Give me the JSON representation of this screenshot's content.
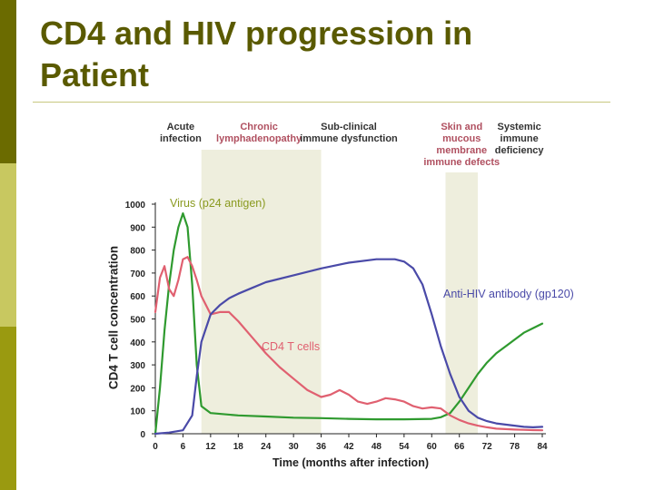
{
  "slide": {
    "title_line1": "CD4 and HIV progression in",
    "title_line2": "Patient"
  },
  "colors": {
    "title": "#5a5a00",
    "virus": "#2f9a2f",
    "cd4": "#e06070",
    "antibody": "#4a4aa8",
    "stage_band": "#eeeedd",
    "virus_label": "#8a9a20"
  },
  "chart_data": {
    "type": "line",
    "title": "",
    "xlabel": "Time (months after infection)",
    "ylabel": "CD4 T cell concentration",
    "xlim": [
      0,
      84
    ],
    "ylim": [
      0,
      1000
    ],
    "x_ticks": [
      0,
      6,
      12,
      18,
      24,
      30,
      36,
      42,
      48,
      54,
      60,
      66,
      72,
      78,
      84
    ],
    "y_ticks": [
      0,
      100,
      200,
      300,
      400,
      500,
      600,
      700,
      800,
      900,
      1000
    ],
    "grid": false,
    "stage_labels": [
      {
        "lines": [
          "Acute",
          "infection"
        ],
        "x": 5.5,
        "color": "#333333"
      },
      {
        "lines": [
          "Chronic",
          "lymphadenopathy"
        ],
        "x": 22.5,
        "color": "#b05060"
      },
      {
        "lines": [
          "Sub-clinical",
          "immune dysfunction"
        ],
        "x": 42,
        "color": "#333333"
      },
      {
        "lines": [
          "Skin and",
          "mucous",
          "membrane",
          "immune defects"
        ],
        "x": 66.5,
        "color": "#b05060"
      },
      {
        "lines": [
          "Systemic",
          "immune",
          "deficiency"
        ],
        "x": 79,
        "color": "#333333"
      }
    ],
    "shaded_bands": [
      {
        "from": 10,
        "to": 36
      },
      {
        "from": 63,
        "to": 70
      }
    ],
    "series": [
      {
        "name": "Virus (p24 antigen)",
        "color": "#2f9a2f",
        "x": [
          0,
          1,
          2,
          3,
          4,
          5,
          6,
          7,
          8,
          9,
          10,
          12,
          18,
          24,
          30,
          36,
          42,
          48,
          54,
          60,
          62,
          64,
          66,
          68,
          70,
          72,
          74,
          76,
          78,
          80,
          82,
          84
        ],
        "y": [
          0,
          200,
          450,
          650,
          800,
          900,
          960,
          900,
          650,
          300,
          120,
          90,
          80,
          75,
          70,
          68,
          65,
          63,
          63,
          65,
          72,
          90,
          140,
          200,
          260,
          310,
          350,
          380,
          410,
          440,
          460,
          480
        ]
      },
      {
        "name": "CD4 T cells",
        "color": "#e06070",
        "x": [
          0,
          1,
          2,
          3,
          4,
          5,
          6,
          7,
          8,
          9,
          10,
          12,
          14,
          16,
          18,
          21,
          24,
          27,
          30,
          33,
          36,
          38,
          40,
          42,
          44,
          46,
          48,
          50,
          52,
          54,
          56,
          58,
          60,
          62,
          64,
          66,
          68,
          70,
          72,
          74,
          76,
          78,
          80,
          82,
          84
        ],
        "y": [
          530,
          680,
          730,
          630,
          600,
          670,
          760,
          770,
          730,
          670,
          600,
          520,
          530,
          530,
          490,
          420,
          350,
          290,
          240,
          190,
          160,
          170,
          190,
          170,
          140,
          130,
          140,
          155,
          150,
          140,
          120,
          110,
          115,
          110,
          80,
          60,
          45,
          35,
          28,
          22,
          20,
          18,
          17,
          16,
          15
        ]
      },
      {
        "name": "Anti-HIV antibody (gp120)",
        "color": "#4a4aa8",
        "x": [
          0,
          3,
          6,
          8,
          9,
          10,
          11,
          12,
          14,
          16,
          18,
          21,
          24,
          30,
          36,
          42,
          48,
          52,
          54,
          56,
          58,
          60,
          62,
          64,
          66,
          68,
          70,
          72,
          74,
          76,
          78,
          80,
          82,
          84
        ],
        "y": [
          0,
          5,
          15,
          80,
          250,
          400,
          460,
          520,
          560,
          590,
          610,
          635,
          660,
          690,
          720,
          745,
          760,
          760,
          750,
          720,
          650,
          520,
          380,
          260,
          160,
          100,
          70,
          55,
          45,
          40,
          35,
          30,
          28,
          30
        ]
      }
    ]
  }
}
